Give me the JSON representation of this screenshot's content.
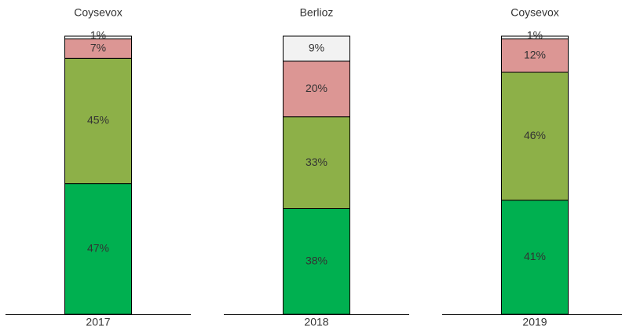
{
  "chart_data": [
    {
      "type": "bar",
      "title": "Coysevox",
      "categories": [
        "2017"
      ],
      "series": [
        {
          "color": "#00b050",
          "values": [
            47
          ],
          "value_labels": [
            "47%"
          ]
        },
        {
          "color": "#8db048",
          "values": [
            45
          ],
          "value_labels": [
            "45%"
          ]
        },
        {
          "color": "#dc9694",
          "values": [
            7
          ],
          "value_labels": [
            "7%"
          ]
        },
        {
          "color": "#f2f2f2",
          "values": [
            1
          ],
          "value_labels": [
            "1%"
          ]
        }
      ]
    },
    {
      "type": "bar",
      "title": "Berlioz",
      "categories": [
        "2018"
      ],
      "series": [
        {
          "color": "#00b050",
          "values": [
            38
          ],
          "value_labels": [
            "38%"
          ]
        },
        {
          "color": "#8db048",
          "values": [
            33
          ],
          "value_labels": [
            "33%"
          ]
        },
        {
          "color": "#dc9694",
          "values": [
            20
          ],
          "value_labels": [
            "20%"
          ]
        },
        {
          "color": "#f2f2f2",
          "values": [
            9
          ],
          "value_labels": [
            "9%"
          ]
        }
      ]
    },
    {
      "type": "bar",
      "title": "Coysevox",
      "categories": [
        "2019"
      ],
      "series": [
        {
          "color": "#00b050",
          "values": [
            41
          ],
          "value_labels": [
            "41%"
          ]
        },
        {
          "color": "#8db048",
          "values": [
            46
          ],
          "value_labels": [
            "46%"
          ]
        },
        {
          "color": "#dc9694",
          "values": [
            12
          ],
          "value_labels": [
            "12%"
          ]
        },
        {
          "color": "#f2f2f2",
          "values": [
            1
          ],
          "value_labels": [
            "1%"
          ]
        }
      ]
    }
  ]
}
